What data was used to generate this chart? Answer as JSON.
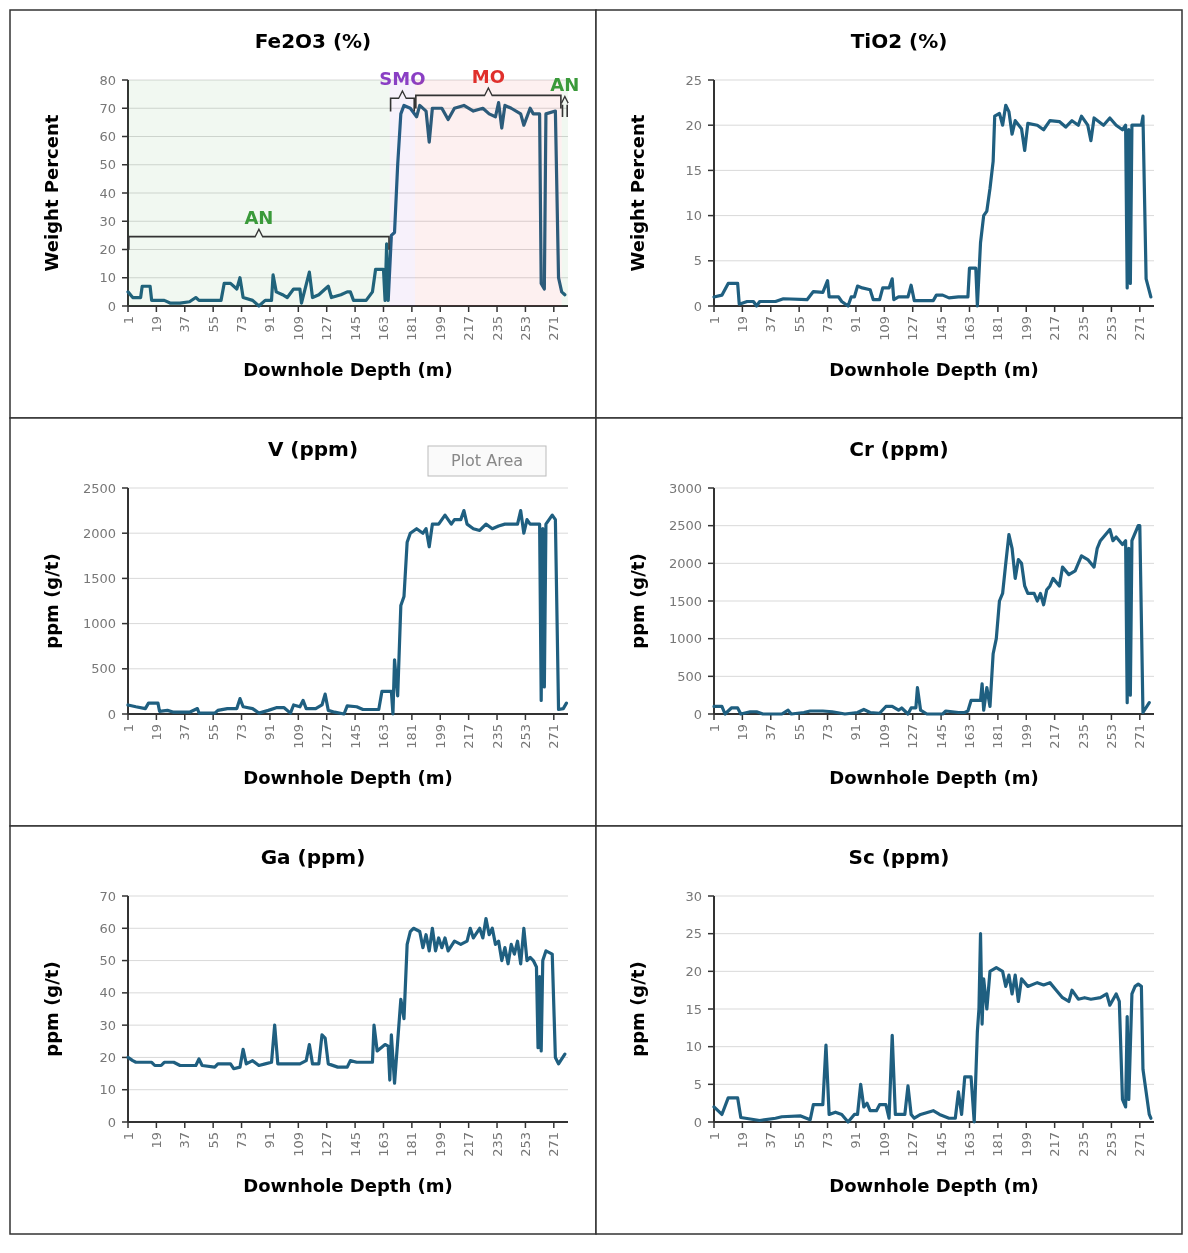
{
  "chart_data": [
    {
      "type": "line",
      "title": "Fe2O3 (%)",
      "xlabel": "Downhole Depth (m)",
      "ylabel": "Weight Percent",
      "xlim": [
        1,
        280
      ],
      "xticks": [
        1,
        19,
        37,
        55,
        73,
        91,
        109,
        127,
        145,
        163,
        181,
        199,
        217,
        235,
        253,
        271
      ],
      "ylim": [
        0,
        80
      ],
      "yticks": [
        0,
        10,
        20,
        30,
        40,
        50,
        60,
        70,
        80
      ],
      "grid": "y",
      "bands": [
        {
          "axis": "x",
          "from": 1,
          "to": 167,
          "label": "AN",
          "color": "#3a9a3a"
        },
        {
          "axis": "x",
          "from": 167,
          "to": 183,
          "label": "SMO",
          "color": "#8a3fc4"
        },
        {
          "axis": "x",
          "from": 183,
          "to": 276,
          "label": "MO",
          "color": "#e0302c"
        },
        {
          "axis": "x",
          "from": 276,
          "to": 280,
          "label": "AN",
          "color": "#3a9a3a"
        }
      ],
      "series": [
        {
          "color": "#1f5f80",
          "x": [
            1,
            4,
            9,
            10,
            15,
            16,
            24,
            28,
            34,
            40,
            44,
            46,
            60,
            62,
            66,
            70,
            72,
            74,
            80,
            84,
            88,
            92,
            93,
            95,
            99,
            102,
            106,
            110,
            111,
            116,
            118,
            122,
            126,
            128,
            130,
            136,
            140,
            142,
            144,
            152,
            156,
            158,
            163,
            164,
            165,
            166,
            168,
            170,
            172,
            174,
            176,
            180,
            184,
            186,
            190,
            192,
            194,
            200,
            204,
            208,
            214,
            220,
            226,
            230,
            234,
            236,
            238,
            240,
            244,
            250,
            252,
            256,
            258,
            262,
            263,
            265,
            266,
            272,
            274,
            276,
            278
          ],
          "values": [
            5,
            3,
            3,
            7,
            7,
            2,
            2,
            1,
            1,
            1.5,
            3,
            2,
            2,
            8,
            8,
            6,
            10,
            3,
            2,
            0,
            2,
            2,
            11,
            5,
            4,
            3,
            6,
            6,
            1,
            12,
            3,
            4,
            6,
            7,
            3,
            4,
            5,
            5,
            2,
            2,
            5,
            13,
            13,
            2,
            22,
            2,
            25,
            26,
            50,
            68,
            71,
            70,
            67,
            71,
            69,
            58,
            70,
            70,
            66,
            70,
            71,
            69,
            70,
            68,
            67,
            72,
            63,
            71,
            70,
            68,
            64,
            70,
            68,
            68,
            8,
            6,
            68,
            69,
            10,
            5,
            4
          ]
        }
      ]
    },
    {
      "type": "line",
      "title": "TiO2 (%)",
      "xlabel": "Downhole Depth (m)",
      "ylabel": "Weight Percent",
      "xlim": [
        1,
        280
      ],
      "xticks": [
        1,
        19,
        37,
        55,
        73,
        91,
        109,
        127,
        145,
        163,
        181,
        199,
        217,
        235,
        253,
        271
      ],
      "ylim": [
        0,
        25
      ],
      "yticks": [
        0,
        5,
        10,
        15,
        20,
        25
      ],
      "grid": "y",
      "series": [
        {
          "color": "#1f5f80",
          "x": [
            1,
            6,
            10,
            16,
            17,
            22,
            26,
            28,
            30,
            40,
            45,
            60,
            64,
            70,
            73,
            74,
            80,
            82,
            86,
            88,
            90,
            92,
            95,
            100,
            102,
            106,
            108,
            112,
            114,
            115,
            118,
            124,
            126,
            128,
            140,
            142,
            146,
            150,
            156,
            162,
            163,
            167,
            168,
            170,
            172,
            174,
            176,
            178,
            179,
            182,
            184,
            186,
            188,
            190,
            192,
            196,
            198,
            200,
            206,
            210,
            214,
            220,
            224,
            228,
            232,
            234,
            238,
            240,
            242,
            248,
            252,
            256,
            260,
            262,
            263,
            264,
            265,
            266,
            270,
            272,
            273,
            275,
            278
          ],
          "values": [
            1,
            1.2,
            2.5,
            2.5,
            0.2,
            0.5,
            0.5,
            0,
            0.5,
            0.5,
            0.8,
            0.7,
            1.6,
            1.5,
            2.8,
            1,
            1,
            0.5,
            0,
            1,
            1,
            2.2,
            2,
            1.8,
            0.7,
            0.7,
            2,
            2,
            3,
            0.7,
            1,
            1,
            2.3,
            0.6,
            0.6,
            1.2,
            1.2,
            0.9,
            1,
            1,
            4.2,
            4.2,
            0,
            7,
            10,
            10.5,
            13,
            16,
            21,
            21.3,
            20,
            22.2,
            21.5,
            19,
            20.5,
            19.6,
            17.2,
            20.2,
            20,
            19.5,
            20.5,
            20.4,
            19.8,
            20.5,
            20,
            21,
            20,
            18.3,
            20.8,
            20,
            20.8,
            20,
            19.5,
            20,
            2,
            19.5,
            2.5,
            20,
            20,
            20,
            21,
            3,
            1
          ]
        }
      ]
    },
    {
      "type": "line",
      "title": "V (ppm)",
      "xlabel": "Downhole Depth (m)",
      "ylabel": "ppm (g/t)",
      "xlim": [
        1,
        280
      ],
      "xticks": [
        1,
        19,
        37,
        55,
        73,
        91,
        109,
        127,
        145,
        163,
        181,
        199,
        217,
        235,
        253,
        271
      ],
      "ylim": [
        0,
        2500
      ],
      "yticks": [
        0,
        500,
        1000,
        1500,
        2000,
        2500
      ],
      "grid": "y",
      "annotations": [
        "Plot Area"
      ],
      "series": [
        {
          "color": "#1f5f80",
          "x": [
            1,
            6,
            12,
            14,
            20,
            21,
            26,
            30,
            40,
            45,
            46,
            56,
            58,
            64,
            70,
            72,
            74,
            80,
            84,
            90,
            95,
            100,
            104,
            106,
            110,
            112,
            114,
            120,
            124,
            126,
            128,
            132,
            138,
            140,
            146,
            150,
            160,
            162,
            168,
            169,
            170,
            172,
            174,
            176,
            178,
            180,
            184,
            188,
            190,
            192,
            194,
            198,
            200,
            202,
            206,
            208,
            212,
            214,
            216,
            220,
            224,
            228,
            232,
            236,
            240,
            248,
            250,
            252,
            254,
            256,
            262,
            263,
            264,
            265,
            266,
            270,
            272,
            274,
            277,
            279
          ],
          "values": [
            100,
            80,
            60,
            120,
            120,
            30,
            40,
            20,
            20,
            60,
            10,
            10,
            40,
            60,
            60,
            170,
            80,
            60,
            10,
            40,
            70,
            70,
            10,
            100,
            80,
            150,
            60,
            60,
            100,
            220,
            40,
            20,
            0,
            90,
            80,
            50,
            50,
            250,
            250,
            0,
            600,
            200,
            1200,
            1300,
            1900,
            2000,
            2050,
            2000,
            2050,
            1850,
            2100,
            2100,
            2150,
            2200,
            2100,
            2150,
            2150,
            2250,
            2100,
            2050,
            2030,
            2100,
            2050,
            2080,
            2100,
            2100,
            2250,
            2000,
            2150,
            2100,
            2100,
            150,
            2050,
            300,
            2100,
            2200,
            2150,
            50,
            60,
            120
          ]
        }
      ]
    },
    {
      "type": "line",
      "title": "Cr (ppm)",
      "xlabel": "Downhole Depth (m)",
      "ylabel": "ppm (g/t)",
      "xlim": [
        1,
        280
      ],
      "xticks": [
        1,
        19,
        37,
        55,
        73,
        91,
        109,
        127,
        145,
        163,
        181,
        199,
        217,
        235,
        253,
        271
      ],
      "ylim": [
        0,
        3000
      ],
      "yticks": [
        0,
        500,
        1000,
        1500,
        2000,
        2500,
        3000
      ],
      "grid": "y",
      "series": [
        {
          "color": "#1f5f80",
          "x": [
            1,
            6,
            8,
            12,
            16,
            18,
            24,
            28,
            32,
            44,
            48,
            50,
            58,
            62,
            70,
            76,
            84,
            92,
            96,
            100,
            106,
            110,
            114,
            118,
            120,
            124,
            126,
            129,
            130,
            132,
            136,
            146,
            148,
            156,
            160,
            162,
            164,
            170,
            171,
            172,
            174,
            176,
            178,
            180,
            182,
            184,
            186,
            188,
            190,
            192,
            194,
            196,
            198,
            200,
            204,
            206,
            208,
            210,
            212,
            214,
            216,
            220,
            222,
            224,
            226,
            230,
            234,
            238,
            242,
            244,
            246,
            250,
            252,
            254,
            256,
            258,
            260,
            262,
            263,
            264,
            265,
            266,
            270,
            271,
            273,
            277
          ],
          "values": [
            100,
            100,
            0,
            80,
            80,
            0,
            30,
            30,
            0,
            0,
            50,
            0,
            20,
            40,
            40,
            30,
            0,
            20,
            60,
            20,
            10,
            100,
            100,
            50,
            80,
            0,
            80,
            80,
            350,
            50,
            0,
            0,
            40,
            20,
            20,
            40,
            180,
            180,
            400,
            50,
            350,
            100,
            800,
            1000,
            1500,
            1600,
            2000,
            2380,
            2200,
            1800,
            2050,
            2000,
            1700,
            1600,
            1600,
            1500,
            1600,
            1450,
            1650,
            1700,
            1800,
            1700,
            1950,
            1900,
            1850,
            1900,
            2100,
            2050,
            1950,
            2200,
            2300,
            2400,
            2450,
            2300,
            2350,
            2300,
            2250,
            2300,
            150,
            2200,
            250,
            2300,
            2500,
            2500,
            20,
            150
          ]
        }
      ]
    },
    {
      "type": "line",
      "title": "Ga (ppm)",
      "xlabel": "Downhole Depth (m)",
      "ylabel": "ppm (g/t)",
      "xlim": [
        1,
        280
      ],
      "xticks": [
        1,
        19,
        37,
        55,
        73,
        91,
        109,
        127,
        145,
        163,
        181,
        199,
        217,
        235,
        253,
        271
      ],
      "ylim": [
        0,
        70
      ],
      "yticks": [
        0,
        10,
        20,
        30,
        40,
        50,
        60,
        70
      ],
      "grid": "y",
      "series": [
        {
          "color": "#1f5f80",
          "x": [
            1,
            4,
            6,
            16,
            18,
            22,
            24,
            30,
            34,
            44,
            46,
            48,
            56,
            58,
            66,
            68,
            72,
            74,
            76,
            80,
            84,
            88,
            92,
            94,
            96,
            110,
            114,
            116,
            118,
            122,
            124,
            126,
            128,
            134,
            140,
            142,
            146,
            156,
            157,
            159,
            164,
            166,
            167,
            168,
            170,
            172,
            174,
            176,
            178,
            180,
            182,
            186,
            188,
            190,
            192,
            194,
            196,
            198,
            200,
            202,
            204,
            208,
            212,
            216,
            218,
            220,
            224,
            226,
            228,
            230,
            232,
            234,
            236,
            238,
            240,
            242,
            244,
            246,
            248,
            250,
            252,
            254,
            256,
            258,
            260,
            261,
            262,
            263,
            264,
            266,
            270,
            272,
            274,
            278
          ],
          "values": [
            20,
            19,
            18.5,
            18.5,
            17.5,
            17.5,
            18.5,
            18.5,
            17.5,
            17.5,
            19.5,
            17.5,
            17,
            18,
            18,
            16.5,
            17,
            22.5,
            18,
            19,
            17.5,
            18,
            18.5,
            30,
            18,
            18,
            19,
            24,
            18,
            18,
            27,
            26,
            18,
            17,
            17,
            19,
            18.5,
            18.5,
            30,
            22,
            24,
            23.5,
            13,
            27,
            12,
            25,
            38,
            32,
            55,
            59,
            60,
            59,
            54,
            58,
            53,
            60,
            53,
            57,
            54,
            57,
            53,
            56,
            55,
            56,
            60,
            57,
            60,
            57,
            63,
            58,
            60,
            55,
            56,
            50,
            54,
            49,
            55,
            52,
            56,
            49,
            60,
            50,
            51,
            50,
            48,
            23,
            45,
            22,
            50,
            53,
            52,
            20,
            18,
            21
          ]
        }
      ]
    },
    {
      "type": "line",
      "title": "Sc (ppm)",
      "xlabel": "Downhole Depth (m)",
      "ylabel": "ppm (g/t)",
      "xlim": [
        1,
        280
      ],
      "xticks": [
        1,
        19,
        37,
        55,
        73,
        91,
        109,
        127,
        145,
        163,
        181,
        199,
        217,
        235,
        253,
        271
      ],
      "ylim": [
        0,
        30
      ],
      "yticks": [
        0,
        5,
        10,
        15,
        20,
        25,
        30
      ],
      "grid": "y",
      "series": [
        {
          "color": "#1f5f80",
          "x": [
            1,
            6,
            10,
            16,
            18,
            24,
            30,
            40,
            44,
            56,
            62,
            64,
            70,
            72,
            74,
            78,
            82,
            86,
            90,
            92,
            94,
            96,
            98,
            100,
            104,
            106,
            110,
            112,
            114,
            116,
            122,
            124,
            126,
            128,
            132,
            140,
            144,
            150,
            154,
            156,
            158,
            160,
            164,
            166,
            168,
            169,
            170,
            171,
            172,
            174,
            176,
            180,
            184,
            186,
            188,
            190,
            192,
            194,
            196,
            200,
            206,
            210,
            214,
            218,
            222,
            226,
            228,
            232,
            236,
            240,
            246,
            250,
            252,
            256,
            258,
            260,
            262,
            263,
            264,
            266,
            268,
            270,
            272,
            273,
            275,
            277,
            278
          ],
          "values": [
            2,
            1,
            3.2,
            3.2,
            0.6,
            0.4,
            0.2,
            0.5,
            0.7,
            0.8,
            0.3,
            2.3,
            2.3,
            10.2,
            1,
            1.3,
            1,
            0,
            1,
            1,
            5,
            2,
            2.5,
            1.5,
            1.5,
            2.3,
            2.3,
            0.5,
            11.5,
            1,
            1,
            4.8,
            1,
            0.5,
            1,
            1.5,
            1,
            0.5,
            0.5,
            4,
            1,
            6,
            6,
            0,
            12,
            15,
            25,
            13,
            19,
            15,
            20,
            20.5,
            20,
            18,
            19.5,
            17,
            19.5,
            16,
            19,
            18,
            18.5,
            18.2,
            18.5,
            17.5,
            16.5,
            16,
            17.5,
            16.3,
            16.5,
            16.3,
            16.5,
            17,
            15.5,
            17,
            16,
            3,
            2,
            14,
            3,
            17,
            18,
            18.3,
            18,
            7,
            4,
            1,
            0.5
          ]
        }
      ]
    }
  ]
}
